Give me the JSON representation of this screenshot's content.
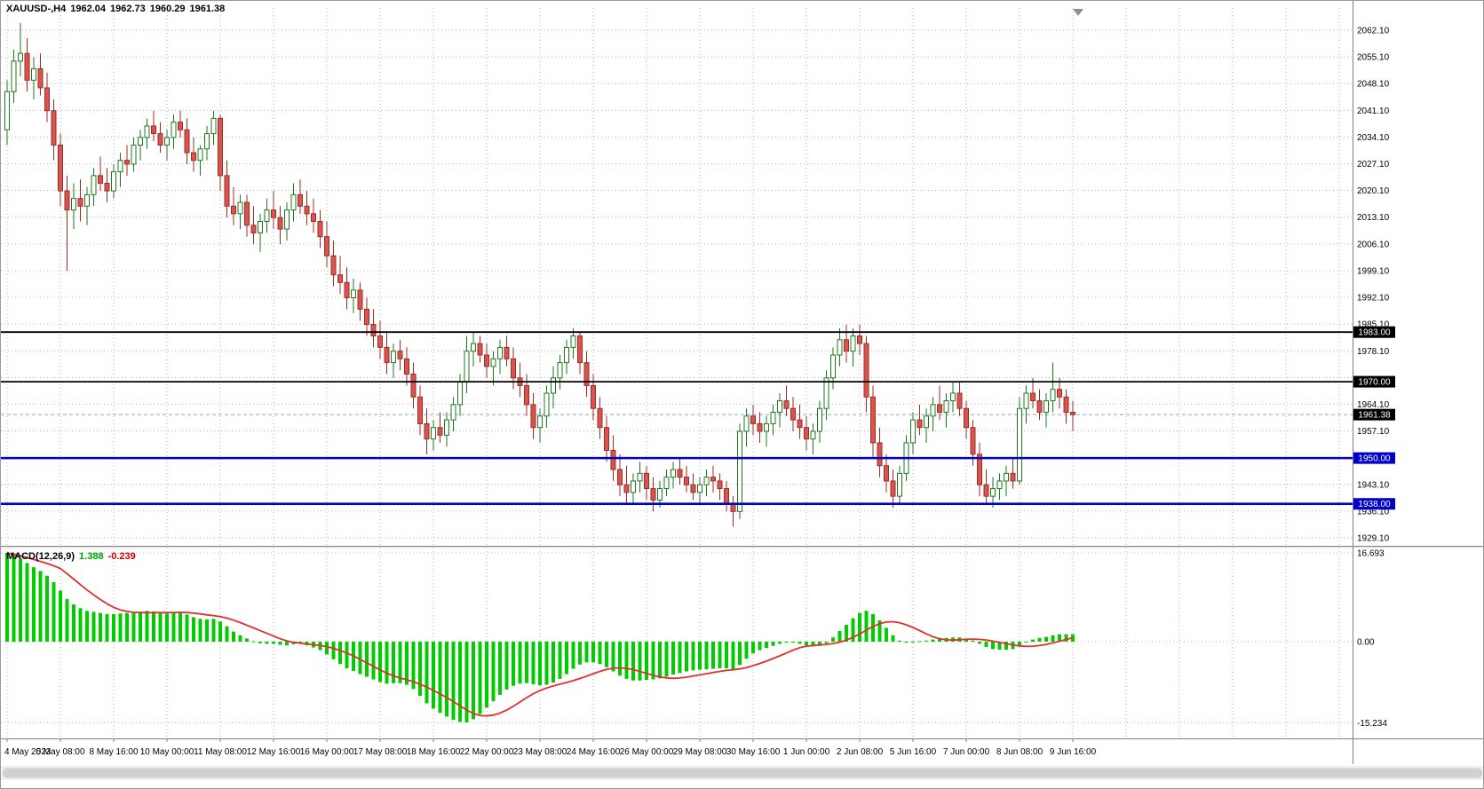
{
  "header": {
    "symbol_period": "XAUUSD-,H4",
    "open": "1962.04",
    "high": "1962.73",
    "low": "1960.29",
    "close": "1961.38"
  },
  "macd_panel": {
    "label": "MACD(12,26,9)",
    "main": "1.388",
    "signal": "-0.239"
  },
  "colors": {
    "background": "#FFFFFF",
    "grid": "#B4B4B4",
    "bull_body": "#FFFFFF",
    "bull_border": "#1C7A1C",
    "bear_body": "#D9534F",
    "bear_border": "#9E2B25",
    "level_black": "#000000",
    "level_blue": "#0000C8",
    "current_price_line": "#8CA6C0",
    "current_badge": "#000000",
    "macd_histogram": "#00CC00",
    "macd_signal": "#E03030",
    "axis_text": "#000000",
    "separator": "#808080",
    "shift_marker": "#909090",
    "scrollbar_thumb": "#D0D0D0"
  },
  "chart_data": {
    "type": "candlestick",
    "title": "XAUUSD-,H4",
    "symbol": "XAUUSD",
    "timeframe": "H4",
    "price_axis_ticks": [
      2062.1,
      2055.1,
      2048.1,
      2041.1,
      2034.1,
      2027.1,
      2020.1,
      2013.1,
      2006.1,
      1999.1,
      1992.1,
      1985.1,
      1978.1,
      1971.1,
      1964.1,
      1957.1,
      1950.1,
      1943.1,
      1936.1,
      1929.1
    ],
    "levels": [
      {
        "price": 1983.0,
        "color": "black"
      },
      {
        "price": 1970.0,
        "color": "black"
      },
      {
        "price": 1950.0,
        "color": "blue"
      },
      {
        "price": 1938.0,
        "color": "blue"
      }
    ],
    "current_price": 1961.38,
    "time_labels": [
      "4 May 2023",
      "5 May 08:00",
      "8 May 16:00",
      "10 May 00:00",
      "11 May 08:00",
      "12 May 16:00",
      "16 May 00:00",
      "17 May 08:00",
      "18 May 16:00",
      "22 May 00:00",
      "23 May 08:00",
      "24 May 16:00",
      "26 May 00:00",
      "29 May 08:00",
      "30 May 16:00",
      "1 Jun 00:00",
      "2 Jun 08:00",
      "5 Jun 16:00",
      "7 Jun 00:00",
      "8 Jun 08:00",
      "9 Jun 16:00"
    ],
    "candles": [
      [
        2036,
        2049,
        2032,
        2046
      ],
      [
        2046,
        2057,
        2043,
        2054
      ],
      [
        2054,
        2064,
        2050,
        2056
      ],
      [
        2056,
        2060,
        2046,
        2049
      ],
      [
        2049,
        2055,
        2044,
        2052
      ],
      [
        2052,
        2056,
        2045,
        2047
      ],
      [
        2047,
        2051,
        2038,
        2041
      ],
      [
        2041,
        2044,
        2028,
        2032
      ],
      [
        2032,
        2035,
        2016,
        2020
      ],
      [
        2020,
        2024,
        1999,
        2015
      ],
      [
        2015,
        2022,
        2010,
        2018
      ],
      [
        2018,
        2023,
        2012,
        2016
      ],
      [
        2016,
        2021,
        2011,
        2019
      ],
      [
        2019,
        2026,
        2016,
        2024
      ],
      [
        2024,
        2029,
        2020,
        2022
      ],
      [
        2022,
        2026,
        2017,
        2020
      ],
      [
        2020,
        2027,
        2018,
        2025
      ],
      [
        2025,
        2030,
        2021,
        2028
      ],
      [
        2028,
        2032,
        2024,
        2027
      ],
      [
        2027,
        2034,
        2025,
        2032
      ],
      [
        2032,
        2036,
        2028,
        2034
      ],
      [
        2034,
        2039,
        2031,
        2037
      ],
      [
        2037,
        2041,
        2033,
        2035
      ],
      [
        2035,
        2038,
        2030,
        2032
      ],
      [
        2032,
        2036,
        2028,
        2034
      ],
      [
        2034,
        2040,
        2031,
        2038
      ],
      [
        2038,
        2041,
        2034,
        2036
      ],
      [
        2036,
        2039,
        2027,
        2030
      ],
      [
        2030,
        2034,
        2025,
        2028
      ],
      [
        2028,
        2032,
        2024,
        2031
      ],
      [
        2031,
        2037,
        2028,
        2035
      ],
      [
        2035,
        2041,
        2032,
        2039
      ],
      [
        2039,
        2040,
        2020,
        2024
      ],
      [
        2024,
        2028,
        2013,
        2016
      ],
      [
        2016,
        2021,
        2011,
        2014
      ],
      [
        2014,
        2019,
        2010,
        2017
      ],
      [
        2017,
        2019,
        2008,
        2011
      ],
      [
        2011,
        2016,
        2006,
        2009
      ],
      [
        2009,
        2014,
        2004,
        2012
      ],
      [
        2012,
        2018,
        2009,
        2015
      ],
      [
        2015,
        2020,
        2010,
        2013
      ],
      [
        2013,
        2016,
        2006,
        2010
      ],
      [
        2010,
        2017,
        2007,
        2015
      ],
      [
        2015,
        2022,
        2012,
        2019
      ],
      [
        2019,
        2023,
        2014,
        2016
      ],
      [
        2016,
        2020,
        2011,
        2014
      ],
      [
        2014,
        2018,
        2009,
        2012
      ],
      [
        2012,
        2015,
        2005,
        2008
      ],
      [
        2008,
        2012,
        2000,
        2003
      ],
      [
        2003,
        2007,
        1995,
        1998
      ],
      [
        1998,
        2003,
        1993,
        1996
      ],
      [
        1996,
        2000,
        1989,
        1992
      ],
      [
        1992,
        1997,
        1988,
        1994
      ],
      [
        1994,
        1996,
        1986,
        1989
      ],
      [
        1989,
        1992,
        1982,
        1985
      ],
      [
        1985,
        1989,
        1979,
        1982
      ],
      [
        1982,
        1986,
        1976,
        1979
      ],
      [
        1979,
        1983,
        1972,
        1975
      ],
      [
        1975,
        1980,
        1971,
        1978
      ],
      [
        1978,
        1981,
        1973,
        1976
      ],
      [
        1976,
        1979,
        1969,
        1972
      ],
      [
        1972,
        1975,
        1963,
        1966
      ],
      [
        1966,
        1969,
        1956,
        1959
      ],
      [
        1959,
        1963,
        1951,
        1955
      ],
      [
        1955,
        1960,
        1952,
        1958
      ],
      [
        1958,
        1962,
        1954,
        1956
      ],
      [
        1956,
        1962,
        1953,
        1960
      ],
      [
        1960,
        1966,
        1957,
        1964
      ],
      [
        1964,
        1972,
        1961,
        1970
      ],
      [
        1970,
        1982,
        1967,
        1978
      ],
      [
        1978,
        1983,
        1974,
        1980
      ],
      [
        1980,
        1982,
        1975,
        1977
      ],
      [
        1977,
        1980,
        1971,
        1974
      ],
      [
        1974,
        1978,
        1969,
        1976
      ],
      [
        1976,
        1981,
        1972,
        1979
      ],
      [
        1979,
        1982,
        1974,
        1976
      ],
      [
        1976,
        1979,
        1968,
        1971
      ],
      [
        1971,
        1975,
        1966,
        1969
      ],
      [
        1969,
        1972,
        1961,
        1964
      ],
      [
        1964,
        1967,
        1955,
        1958
      ],
      [
        1958,
        1963,
        1954,
        1961
      ],
      [
        1961,
        1969,
        1958,
        1967
      ],
      [
        1967,
        1974,
        1963,
        1971
      ],
      [
        1971,
        1977,
        1968,
        1975
      ],
      [
        1975,
        1981,
        1972,
        1979
      ],
      [
        1979,
        1984,
        1976,
        1982
      ],
      [
        1982,
        1983,
        1972,
        1975
      ],
      [
        1975,
        1978,
        1966,
        1969
      ],
      [
        1969,
        1972,
        1960,
        1963
      ],
      [
        1963,
        1966,
        1955,
        1958
      ],
      [
        1958,
        1961,
        1949,
        1952
      ],
      [
        1952,
        1956,
        1944,
        1947
      ],
      [
        1947,
        1951,
        1940,
        1943
      ],
      [
        1943,
        1948,
        1938,
        1941
      ],
      [
        1941,
        1946,
        1938,
        1944
      ],
      [
        1944,
        1949,
        1941,
        1946
      ],
      [
        1946,
        1948,
        1939,
        1942
      ],
      [
        1942,
        1945,
        1936,
        1939
      ],
      [
        1939,
        1944,
        1937,
        1942
      ],
      [
        1942,
        1947,
        1940,
        1945
      ],
      [
        1945,
        1949,
        1942,
        1947
      ],
      [
        1947,
        1950,
        1943,
        1945
      ],
      [
        1945,
        1948,
        1941,
        1943
      ],
      [
        1943,
        1946,
        1939,
        1941
      ],
      [
        1941,
        1945,
        1938,
        1943
      ],
      [
        1943,
        1947,
        1940,
        1945
      ],
      [
        1945,
        1948,
        1941,
        1944
      ],
      [
        1944,
        1946,
        1939,
        1942
      ],
      [
        1942,
        1944,
        1936,
        1938
      ],
      [
        1938,
        1940,
        1932,
        1936
      ],
      [
        1936,
        1959,
        1934,
        1957
      ],
      [
        1957,
        1963,
        1953,
        1961
      ],
      [
        1961,
        1964,
        1956,
        1959
      ],
      [
        1959,
        1962,
        1954,
        1957
      ],
      [
        1957,
        1961,
        1953,
        1959
      ],
      [
        1959,
        1964,
        1956,
        1962
      ],
      [
        1962,
        1967,
        1958,
        1965
      ],
      [
        1965,
        1969,
        1961,
        1963
      ],
      [
        1963,
        1966,
        1957,
        1960
      ],
      [
        1960,
        1964,
        1955,
        1958
      ],
      [
        1958,
        1961,
        1952,
        1955
      ],
      [
        1955,
        1959,
        1951,
        1957
      ],
      [
        1957,
        1965,
        1954,
        1963
      ],
      [
        1963,
        1973,
        1960,
        1971
      ],
      [
        1971,
        1979,
        1968,
        1977
      ],
      [
        1977,
        1984,
        1974,
        1981
      ],
      [
        1981,
        1985,
        1975,
        1978
      ],
      [
        1978,
        1984,
        1974,
        1982
      ],
      [
        1982,
        1985,
        1977,
        1980
      ],
      [
        1980,
        1982,
        1962,
        1966
      ],
      [
        1966,
        1969,
        1950,
        1954
      ],
      [
        1954,
        1958,
        1945,
        1948
      ],
      [
        1948,
        1951,
        1941,
        1944
      ],
      [
        1944,
        1947,
        1937,
        1940
      ],
      [
        1940,
        1948,
        1938,
        1946
      ],
      [
        1946,
        1956,
        1944,
        1954
      ],
      [
        1954,
        1962,
        1951,
        1960
      ],
      [
        1960,
        1964,
        1956,
        1958
      ],
      [
        1958,
        1963,
        1954,
        1961
      ],
      [
        1961,
        1966,
        1957,
        1964
      ],
      [
        1964,
        1969,
        1960,
        1962
      ],
      [
        1962,
        1967,
        1958,
        1965
      ],
      [
        1965,
        1970,
        1962,
        1967
      ],
      [
        1967,
        1970,
        1961,
        1963
      ],
      [
        1963,
        1965,
        1955,
        1958
      ],
      [
        1958,
        1960,
        1948,
        1951
      ],
      [
        1951,
        1954,
        1940,
        1943
      ],
      [
        1943,
        1947,
        1938,
        1940
      ],
      [
        1940,
        1945,
        1937,
        1942
      ],
      [
        1942,
        1946,
        1939,
        1944
      ],
      [
        1944,
        1948,
        1940,
        1946
      ],
      [
        1946,
        1950,
        1942,
        1944
      ],
      [
        1944,
        1966,
        1943,
        1963
      ],
      [
        1963,
        1969,
        1959,
        1967
      ],
      [
        1967,
        1971,
        1963,
        1965
      ],
      [
        1965,
        1968,
        1960,
        1962
      ],
      [
        1962,
        1967,
        1958,
        1965
      ],
      [
        1965,
        1975,
        1962,
        1968
      ],
      [
        1968,
        1971,
        1963,
        1966
      ],
      [
        1966,
        1968,
        1959,
        1962
      ],
      [
        1962,
        1965,
        1957,
        1961.38
      ]
    ],
    "macd": {
      "params": "MACD(12,26,9)",
      "main_value": 1.388,
      "signal_value": -0.239,
      "axis_labels": [
        "16.693",
        "0.00",
        "-15.234"
      ],
      "axis_values": [
        16.693,
        0.0,
        -15.234
      ],
      "histogram": [
        16.7,
        16.2,
        15.6,
        14.8,
        14.0,
        13.3,
        12.4,
        11.2,
        9.6,
        8.0,
        7.0,
        6.3,
        5.8,
        5.6,
        5.4,
        5.2,
        5.2,
        5.3,
        5.4,
        5.5,
        5.7,
        5.8,
        5.7,
        5.4,
        5.3,
        5.4,
        5.4,
        5.1,
        4.6,
        4.3,
        4.2,
        4.3,
        3.8,
        2.9,
        1.9,
        1.2,
        0.6,
        0.1,
        -0.3,
        -0.4,
        -0.4,
        -0.6,
        -0.7,
        -0.5,
        -0.4,
        -0.7,
        -1.1,
        -1.6,
        -2.4,
        -3.3,
        -4.2,
        -5.0,
        -5.5,
        -6.1,
        -6.6,
        -7.1,
        -7.6,
        -7.9,
        -7.8,
        -7.8,
        -8.1,
        -8.9,
        -10.2,
        -11.6,
        -12.6,
        -13.4,
        -14.1,
        -14.7,
        -15.1,
        -15.2,
        -14.6,
        -13.6,
        -12.4,
        -11.2,
        -10.0,
        -9.0,
        -8.3,
        -7.9,
        -7.8,
        -8.0,
        -8.2,
        -8.1,
        -7.7,
        -7.0,
        -6.1,
        -5.1,
        -4.3,
        -3.9,
        -3.9,
        -4.2,
        -4.8,
        -5.6,
        -6.4,
        -7.0,
        -7.3,
        -7.3,
        -7.2,
        -7.1,
        -6.9,
        -6.6,
        -6.2,
        -5.9,
        -5.6,
        -5.4,
        -5.3,
        -5.2,
        -5.1,
        -5.0,
        -5.0,
        -5.2,
        -4.4,
        -3.2,
        -2.2,
        -1.6,
        -1.2,
        -0.8,
        -0.4,
        -0.2,
        -0.2,
        -0.4,
        -0.7,
        -0.9,
        -0.8,
        -0.3,
        0.8,
        2.0,
        3.2,
        4.4,
        5.4,
        5.8,
        5.2,
        4.0,
        2.6,
        1.2,
        0.2,
        -0.2,
        -0.1,
        0.1,
        0.2,
        0.4,
        0.6,
        0.7,
        0.8,
        0.8,
        0.6,
        0.2,
        -0.4,
        -1.0,
        -1.4,
        -1.5,
        -1.5,
        -1.4,
        -0.8,
        -0.1,
        0.4,
        0.7,
        0.9,
        1.2,
        1.4,
        1.4,
        1.388
      ]
    }
  }
}
